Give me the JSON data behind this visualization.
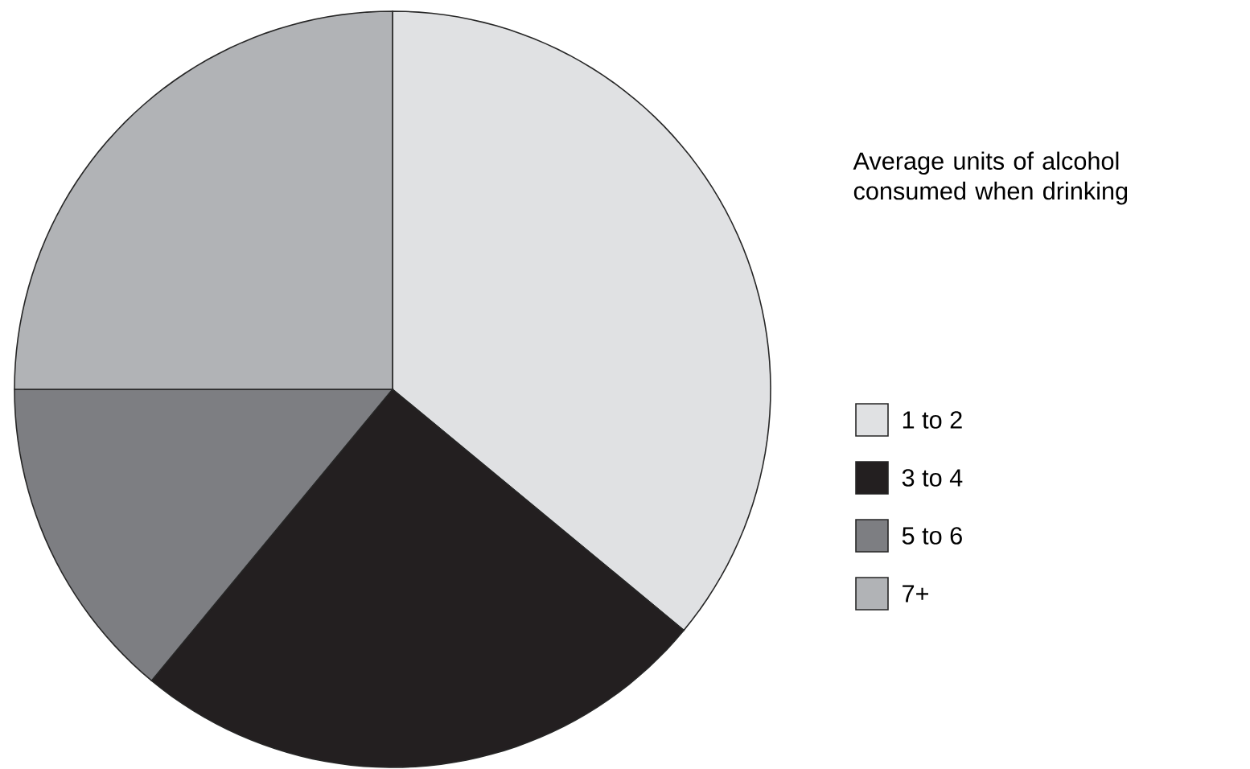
{
  "chart_data": {
    "type": "pie",
    "legend_title": "Average units of alcohol consumed when drinking",
    "legend": "right",
    "categories": [
      "1 to 2",
      "3 to 4",
      "5 to 6",
      "7+"
    ],
    "values": [
      36,
      25,
      14,
      25
    ],
    "colors": [
      "#e0e1e3",
      "#231f20",
      "#7d7e82",
      "#b1b3b6"
    ]
  }
}
